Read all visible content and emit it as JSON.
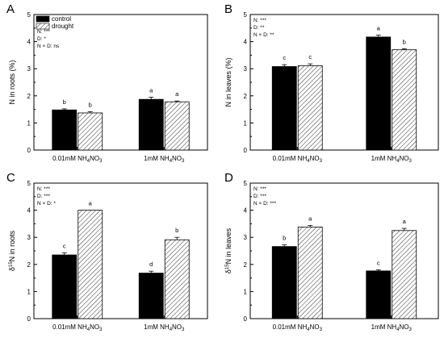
{
  "legend": {
    "control": "control",
    "drought": "drought"
  },
  "colors": {
    "control": "#000000",
    "drought_hatch": "#000000",
    "drought_fill": "#ffffff"
  },
  "chart_data": [
    {
      "panel": "A",
      "type": "bar",
      "ylabel_pre": "N in roots (%)",
      "ylabel_sup": "",
      "ylabel_post": "",
      "ylim": [
        0,
        5
      ],
      "yticks": [
        "0",
        "1",
        "2",
        "3",
        "4",
        "5"
      ],
      "categories": [
        {
          "pre": "0.01mM NH",
          "sub1": "4",
          "mid": "NO",
          "sub2": "3"
        },
        {
          "pre": "1mM NH",
          "sub1": "4",
          "mid": "NO",
          "sub2": "3"
        }
      ],
      "series": [
        {
          "name": "control",
          "values": [
            1.48,
            1.87
          ],
          "errors": [
            0.04,
            0.08
          ],
          "letters": [
            "b",
            "a"
          ]
        },
        {
          "name": "drought",
          "values": [
            1.37,
            1.78
          ],
          "errors": [
            0.05,
            0.03
          ],
          "letters": [
            "b",
            "a"
          ]
        }
      ],
      "stats": [
        "N: ***",
        "D: *",
        "N × D: ns"
      ],
      "legend_placement": "top-left"
    },
    {
      "panel": "B",
      "type": "bar",
      "ylabel_pre": "N in leaves (%)",
      "ylabel_sup": "",
      "ylabel_post": "",
      "ylim": [
        0,
        5
      ],
      "yticks": [
        "0",
        "1",
        "2",
        "3",
        "4",
        "5"
      ],
      "categories": [
        {
          "pre": "0.01mM NH",
          "sub1": "4",
          "mid": "NO",
          "sub2": "3"
        },
        {
          "pre": "1mM NH",
          "sub1": "4",
          "mid": "NO",
          "sub2": "3"
        }
      ],
      "series": [
        {
          "name": "control",
          "values": [
            3.08,
            4.17
          ],
          "errors": [
            0.07,
            0.07
          ],
          "letters": [
            "c",
            "a"
          ]
        },
        {
          "name": "drought",
          "values": [
            3.11,
            3.7
          ],
          "errors": [
            0.07,
            0.04
          ],
          "letters": [
            "c",
            "b"
          ]
        }
      ],
      "stats": [
        "N: ***",
        "D: **",
        "N × D: **"
      ]
    },
    {
      "panel": "C",
      "type": "bar",
      "ylabel_pre": "δ",
      "ylabel_sup": "15",
      "ylabel_post": "N in roots",
      "ylim": [
        0,
        5
      ],
      "yticks": [
        "0",
        "1",
        "2",
        "3",
        "4",
        "5"
      ],
      "categories": [
        {
          "pre": "0.01mM NH",
          "sub1": "4",
          "mid": "NO",
          "sub2": "3"
        },
        {
          "pre": "1mM NH",
          "sub1": "4",
          "mid": "NO",
          "sub2": "3"
        }
      ],
      "series": [
        {
          "name": "control",
          "values": [
            2.35,
            1.68
          ],
          "errors": [
            0.08,
            0.07
          ],
          "letters": [
            "c",
            "d"
          ]
        },
        {
          "name": "drought",
          "values": [
            4.0,
            2.91
          ],
          "errors": [
            0.0,
            0.09
          ],
          "letters": [
            "a",
            "b"
          ]
        }
      ],
      "stats": [
        "N: ***",
        "D: ***",
        "N × D: *"
      ]
    },
    {
      "panel": "D",
      "type": "bar",
      "ylabel_pre": "δ",
      "ylabel_sup": "15",
      "ylabel_post": "N in leaves",
      "ylim": [
        0,
        5
      ],
      "yticks": [
        "0",
        "1",
        "2",
        "3",
        "4",
        "5"
      ],
      "categories": [
        {
          "pre": "0.01mM NH",
          "sub1": "4",
          "mid": "NO",
          "sub2": "3"
        },
        {
          "pre": "1mM NH",
          "sub1": "4",
          "mid": "NO",
          "sub2": "3"
        }
      ],
      "series": [
        {
          "name": "control",
          "values": [
            2.66,
            1.76
          ],
          "errors": [
            0.06,
            0.04
          ],
          "letters": [
            "b",
            "c"
          ]
        },
        {
          "name": "drought",
          "values": [
            3.38,
            3.25
          ],
          "errors": [
            0.06,
            0.08
          ],
          "letters": [
            "a",
            "a"
          ]
        }
      ],
      "stats": [
        "N: ***",
        "D: ***",
        "N × D: ***"
      ]
    }
  ]
}
